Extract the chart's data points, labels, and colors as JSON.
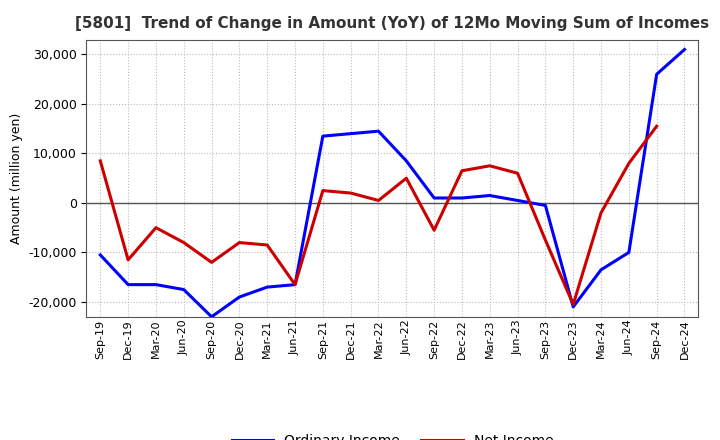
{
  "title": "[5801]  Trend of Change in Amount (YoY) of 12Mo Moving Sum of Incomes",
  "ylabel": "Amount (million yen)",
  "ylim": [
    -23000,
    33000
  ],
  "yticks": [
    -20000,
    -10000,
    0,
    10000,
    20000,
    30000
  ],
  "background_color": "#ffffff",
  "plot_bg_color": "#ffffff",
  "grid_color": "#bbbbbb",
  "labels": [
    "Sep-19",
    "Dec-19",
    "Mar-20",
    "Jun-20",
    "Sep-20",
    "Dec-20",
    "Mar-21",
    "Jun-21",
    "Sep-21",
    "Dec-21",
    "Mar-22",
    "Jun-22",
    "Sep-22",
    "Dec-22",
    "Mar-23",
    "Jun-23",
    "Sep-23",
    "Dec-23",
    "Mar-24",
    "Jun-24",
    "Sep-24",
    "Dec-24"
  ],
  "ordinary_income": [
    -10500,
    -16500,
    -16500,
    -17500,
    -23000,
    -19000,
    -17000,
    -16500,
    13500,
    14000,
    14500,
    8500,
    1000,
    1000,
    1500,
    500,
    -500,
    -21000,
    -13500,
    -10000,
    26000,
    31000
  ],
  "net_income": [
    8500,
    -11500,
    -5000,
    -8000,
    -12000,
    -8000,
    -8500,
    -16500,
    2500,
    2000,
    500,
    5000,
    -5500,
    6500,
    7500,
    6000,
    -7500,
    -20500,
    -2000,
    8000,
    15500,
    null
  ],
  "ordinary_color": "#0000ff",
  "net_color": "#cc0000",
  "line_width": 2.2,
  "title_fontsize": 11,
  "legend_fontsize": 10,
  "tick_fontsize": 9,
  "ylabel_fontsize": 9
}
